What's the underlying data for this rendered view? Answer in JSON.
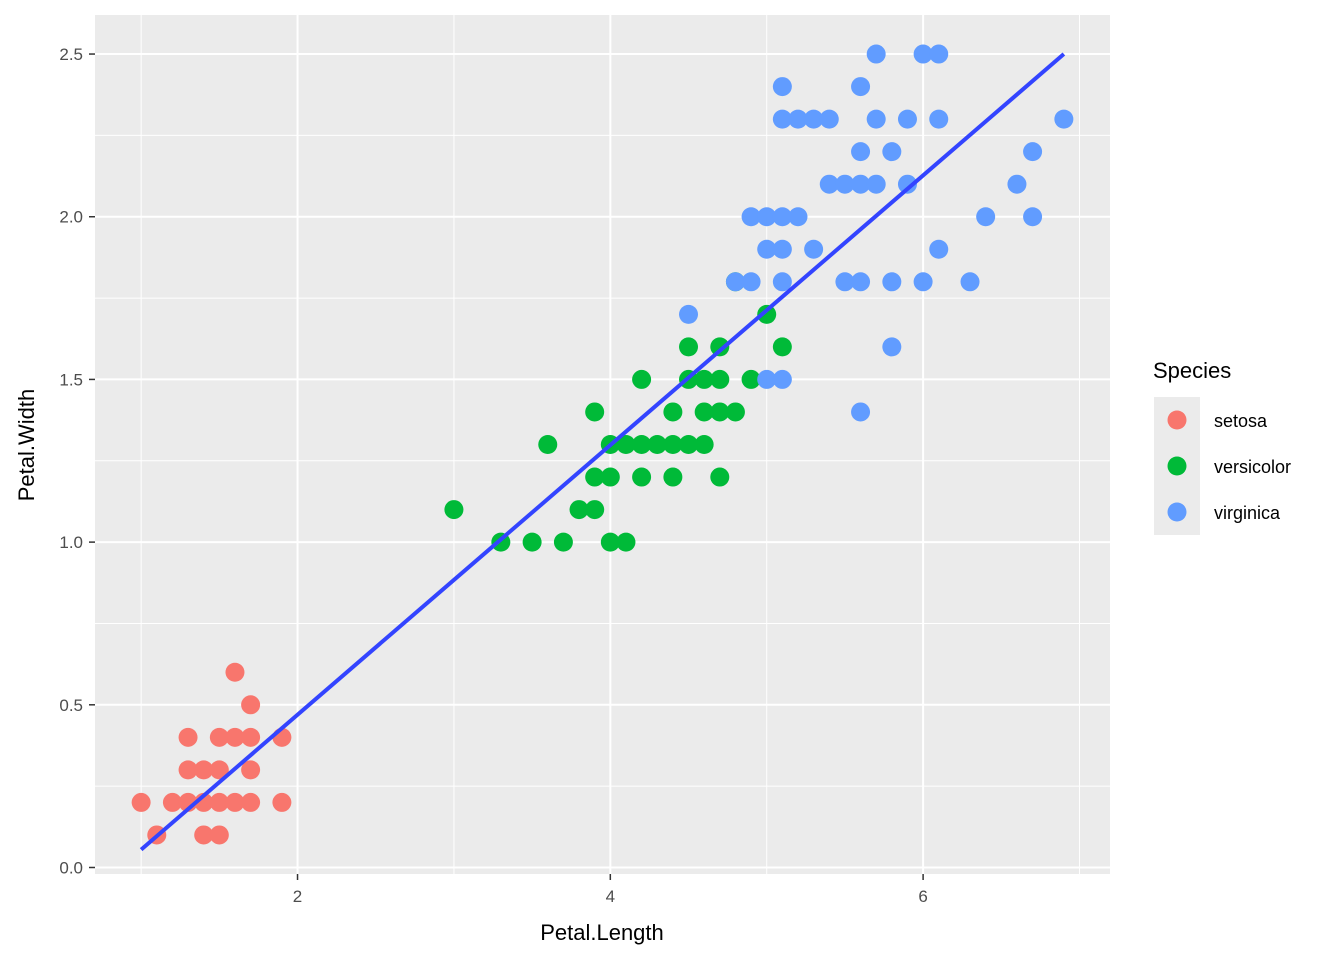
{
  "chart_data": {
    "type": "scatter",
    "xlabel": "Petal.Length",
    "ylabel": "Petal.Width",
    "xlim": [
      0.705,
      7.195
    ],
    "ylim": [
      -0.02,
      2.62
    ],
    "xticks": [
      2,
      4,
      6
    ],
    "xtick_labels": [
      "2",
      "4",
      "6"
    ],
    "xminor": [
      1,
      3,
      5,
      7
    ],
    "yticks": [
      0.0,
      0.5,
      1.0,
      1.5,
      2.0,
      2.5
    ],
    "ytick_labels": [
      "0.0",
      "0.5",
      "1.0",
      "1.5",
      "2.0",
      "2.5"
    ],
    "yminor": [
      0.25,
      0.75,
      1.25,
      1.75,
      2.25
    ],
    "grid": true,
    "background": "#EBEBEB",
    "legend": {
      "title": "Species",
      "placement": "right",
      "entries": [
        "setosa",
        "versicolor",
        "virginica"
      ]
    },
    "series": [
      {
        "name": "setosa",
        "color": "#F8766D",
        "points": [
          [
            1.0,
            0.2
          ],
          [
            1.1,
            0.1
          ],
          [
            1.2,
            0.2
          ],
          [
            1.3,
            0.2
          ],
          [
            1.3,
            0.3
          ],
          [
            1.3,
            0.4
          ],
          [
            1.4,
            0.1
          ],
          [
            1.4,
            0.2
          ],
          [
            1.4,
            0.3
          ],
          [
            1.5,
            0.1
          ],
          [
            1.5,
            0.2
          ],
          [
            1.5,
            0.3
          ],
          [
            1.5,
            0.4
          ],
          [
            1.6,
            0.2
          ],
          [
            1.6,
            0.4
          ],
          [
            1.6,
            0.6
          ],
          [
            1.7,
            0.2
          ],
          [
            1.7,
            0.3
          ],
          [
            1.7,
            0.4
          ],
          [
            1.7,
            0.5
          ],
          [
            1.9,
            0.2
          ],
          [
            1.9,
            0.4
          ]
        ]
      },
      {
        "name": "versicolor",
        "color": "#00BA38",
        "points": [
          [
            3.0,
            1.1
          ],
          [
            3.3,
            1.0
          ],
          [
            3.5,
            1.0
          ],
          [
            3.6,
            1.3
          ],
          [
            3.7,
            1.0
          ],
          [
            3.8,
            1.1
          ],
          [
            3.9,
            1.1
          ],
          [
            3.9,
            1.2
          ],
          [
            3.9,
            1.4
          ],
          [
            4.0,
            1.0
          ],
          [
            4.0,
            1.2
          ],
          [
            4.0,
            1.3
          ],
          [
            4.1,
            1.0
          ],
          [
            4.1,
            1.3
          ],
          [
            4.2,
            1.2
          ],
          [
            4.2,
            1.3
          ],
          [
            4.2,
            1.5
          ],
          [
            4.3,
            1.3
          ],
          [
            4.4,
            1.2
          ],
          [
            4.4,
            1.3
          ],
          [
            4.4,
            1.4
          ],
          [
            4.5,
            1.3
          ],
          [
            4.5,
            1.5
          ],
          [
            4.5,
            1.6
          ],
          [
            4.6,
            1.3
          ],
          [
            4.6,
            1.4
          ],
          [
            4.6,
            1.5
          ],
          [
            4.7,
            1.2
          ],
          [
            4.7,
            1.4
          ],
          [
            4.7,
            1.5
          ],
          [
            4.7,
            1.6
          ],
          [
            4.8,
            1.4
          ],
          [
            4.8,
            1.8
          ],
          [
            4.9,
            1.5
          ],
          [
            5.0,
            1.7
          ],
          [
            5.1,
            1.6
          ]
        ]
      },
      {
        "name": "virginica",
        "color": "#619CFF",
        "points": [
          [
            4.5,
            1.7
          ],
          [
            4.8,
            1.8
          ],
          [
            4.9,
            1.8
          ],
          [
            4.9,
            2.0
          ],
          [
            5.0,
            1.5
          ],
          [
            5.0,
            1.9
          ],
          [
            5.0,
            2.0
          ],
          [
            5.1,
            1.5
          ],
          [
            5.1,
            1.8
          ],
          [
            5.1,
            1.9
          ],
          [
            5.1,
            2.0
          ],
          [
            5.1,
            2.3
          ],
          [
            5.1,
            2.4
          ],
          [
            5.2,
            2.0
          ],
          [
            5.2,
            2.3
          ],
          [
            5.3,
            1.9
          ],
          [
            5.3,
            2.3
          ],
          [
            5.4,
            2.1
          ],
          [
            5.4,
            2.3
          ],
          [
            5.5,
            1.8
          ],
          [
            5.5,
            2.1
          ],
          [
            5.6,
            1.4
          ],
          [
            5.6,
            1.8
          ],
          [
            5.6,
            2.1
          ],
          [
            5.6,
            2.2
          ],
          [
            5.6,
            2.4
          ],
          [
            5.7,
            2.1
          ],
          [
            5.7,
            2.3
          ],
          [
            5.7,
            2.5
          ],
          [
            5.8,
            1.6
          ],
          [
            5.8,
            1.8
          ],
          [
            5.8,
            2.2
          ],
          [
            5.9,
            2.1
          ],
          [
            5.9,
            2.3
          ],
          [
            6.0,
            1.8
          ],
          [
            6.0,
            2.5
          ],
          [
            6.1,
            1.9
          ],
          [
            6.1,
            2.3
          ],
          [
            6.1,
            2.5
          ],
          [
            6.3,
            1.8
          ],
          [
            6.4,
            2.0
          ],
          [
            6.6,
            2.1
          ],
          [
            6.7,
            2.0
          ],
          [
            6.7,
            2.2
          ],
          [
            6.9,
            2.3
          ]
        ]
      }
    ],
    "trend_line": {
      "color": "#3344FF",
      "from": [
        1.0,
        0.055
      ],
      "to": [
        6.9,
        2.5
      ]
    }
  }
}
